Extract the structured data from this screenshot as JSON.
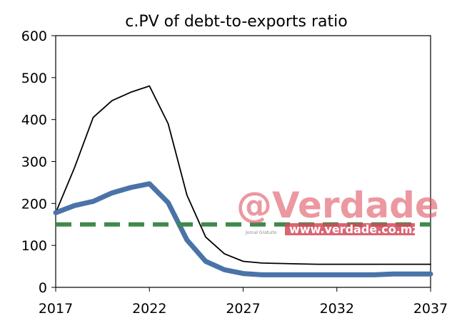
{
  "chart_data": {
    "type": "line",
    "title": "c.PV of debt-to-exports ratio",
    "xlabel": "",
    "ylabel": "",
    "xlim": [
      2017,
      2037
    ],
    "ylim": [
      0,
      600
    ],
    "xticks": [
      2017,
      2022,
      2027,
      2032,
      2037
    ],
    "yticks": [
      0,
      100,
      200,
      300,
      400,
      500,
      600
    ],
    "grid": false,
    "legend": "none",
    "series": [
      {
        "color": "#000000",
        "style": "thin-solid",
        "x": [
          2017,
          2018,
          2019,
          2020,
          2021,
          2022,
          2023,
          2024,
          2025,
          2026,
          2027,
          2028,
          2029,
          2030,
          2031,
          2032,
          2033,
          2034,
          2035,
          2036,
          2037
        ],
        "values": [
          178,
          285,
          405,
          445,
          465,
          480,
          390,
          220,
          120,
          80,
          62,
          58,
          57,
          56,
          55,
          55,
          55,
          55,
          55,
          55,
          55
        ]
      },
      {
        "color": "#4a73a8",
        "style": "thick-solid",
        "x": [
          2017,
          2018,
          2019,
          2020,
          2021,
          2022,
          2023,
          2024,
          2025,
          2026,
          2027,
          2028,
          2029,
          2030,
          2031,
          2032,
          2033,
          2034,
          2035,
          2036,
          2037
        ],
        "values": [
          178,
          195,
          205,
          225,
          238,
          247,
          202,
          113,
          62,
          42,
          33,
          30,
          30,
          30,
          30,
          30,
          30,
          30,
          32,
          32,
          32
        ]
      },
      {
        "color": "#3f8a4a",
        "style": "thick-dashed",
        "x": [
          2017,
          2037
        ],
        "values": [
          150,
          150
        ]
      }
    ]
  },
  "watermark": {
    "brand": "@Verdade",
    "url": "www.verdade.co.mz",
    "tagline": "Jornal Gratuito"
  }
}
